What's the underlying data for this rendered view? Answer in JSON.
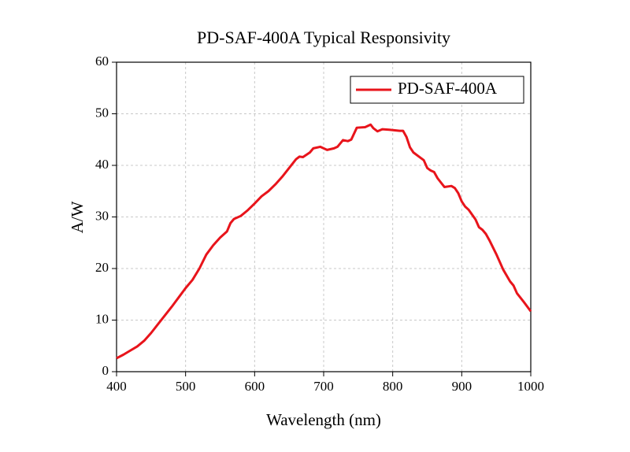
{
  "chart_data": {
    "type": "line",
    "title": "PD-SAF-400A Typical Responsivity",
    "xlabel": "Wavelength (nm)",
    "ylabel": "A/W",
    "x": [
      400,
      410,
      420,
      430,
      440,
      450,
      460,
      470,
      480,
      490,
      500,
      510,
      520,
      530,
      540,
      550,
      560,
      565,
      570,
      580,
      590,
      600,
      610,
      620,
      630,
      640,
      650,
      660,
      665,
      670,
      680,
      685,
      695,
      700,
      705,
      715,
      720,
      728,
      735,
      740,
      748,
      760,
      768,
      772,
      778,
      785,
      795,
      810,
      815,
      820,
      825,
      830,
      840,
      845,
      850,
      855,
      860,
      865,
      875,
      885,
      890,
      895,
      900,
      905,
      910,
      920,
      925,
      930,
      935,
      940,
      950,
      960,
      970,
      975,
      980,
      990,
      1000
    ],
    "series": [
      {
        "name": "PD-SAF-400A",
        "color": "#e8141b",
        "values": [
          2.6,
          3.3,
          4.1,
          4.9,
          6.0,
          7.5,
          9.2,
          10.9,
          12.6,
          14.4,
          16.2,
          17.8,
          20.0,
          22.7,
          24.5,
          26.0,
          27.2,
          28.8,
          29.6,
          30.2,
          31.3,
          32.6,
          34.0,
          35.0,
          36.3,
          37.8,
          39.5,
          41.2,
          41.7,
          41.6,
          42.5,
          43.3,
          43.6,
          43.3,
          43.0,
          43.3,
          43.6,
          44.9,
          44.7,
          45.0,
          47.3,
          47.4,
          47.9,
          47.2,
          46.6,
          47.0,
          46.9,
          46.7,
          46.7,
          45.5,
          43.5,
          42.5,
          41.5,
          41.0,
          39.5,
          39.0,
          38.7,
          37.5,
          35.8,
          36.0,
          35.6,
          34.6,
          33.0,
          32.0,
          31.4,
          29.5,
          28.0,
          27.5,
          26.7,
          25.5,
          22.8,
          19.8,
          17.5,
          16.7,
          15.2,
          13.5,
          11.7
        ]
      }
    ],
    "xlim": [
      400,
      1000
    ],
    "xticks": [
      400,
      500,
      600,
      700,
      800,
      900,
      1000
    ],
    "ylim": [
      0,
      60
    ],
    "yticks": [
      0,
      10,
      20,
      30,
      40,
      50,
      60
    ],
    "grid": true,
    "legend": "upper right"
  }
}
